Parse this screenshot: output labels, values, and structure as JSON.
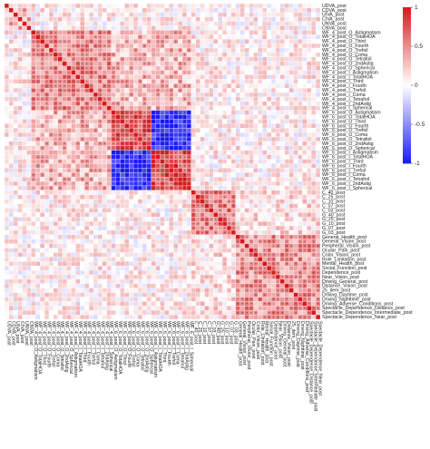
{
  "chart_data": {
    "type": "heatmap",
    "title": "",
    "variables": [
      "UDVA_post",
      "CDVA_post",
      "UIVA_post",
      "CIVA_post",
      "UNVA_post",
      "CNVA_post",
      "WF_4_post_O_Astigmatism",
      "WF_4_post_O_TotalHOA",
      "WF_4_post_O_Third",
      "WF_4_post_O_Fourth",
      "WF_4_post_O_Trefoil",
      "WF_4_post_O_Coma",
      "WF_4_post_O_Tetrafoil",
      "WF_4_post_O_2ndAstig",
      "WF_4_post_O_Spherical",
      "WF_4_post_I_Astigmatism",
      "WF_4_post_I_TotalHOA",
      "WF_4_post_I_Third",
      "WF_4_post_I_Fourth",
      "WF_4_post_I_Trefoil",
      "WF_4_post_I_Coma",
      "WF_4_post_I_Tetrafoil",
      "WF_4_post_I_2ndAstig",
      "WF_4_post_I_Spherical",
      "WF_6_post_O_Astigmatism",
      "WF_6_post_O_TotalHOA",
      "WF_6_post_O_Third",
      "WF_6_post_O_Fourth",
      "WF_6_post_O_Trefoil",
      "WF_6_post_O_Coma",
      "WF_6_post_O_Tetrafoil",
      "WF_6_post_O_2ndAstig",
      "WF_6_post_O_Spherical",
      "WF_6_post_I_Astigmatism",
      "WF_6_post_I_TotalHOA",
      "WF_6_post_I_Third",
      "WF_6_post_I_Fourth",
      "WF_6_post_I_Trefoil",
      "WF_6_post_I_Coma",
      "WF_6_post_I_Tetrafoil",
      "WF_6_post_I_2ndAstig",
      "WF_6_post_I_Spherical",
      "C_40_post",
      "C_25_post",
      "C_10_post",
      "C_07_post",
      "C_03_post",
      "G_40_post",
      "G_25_post",
      "G_10_post",
      "G_07_post",
      "G_03_post",
      "General_Health_post",
      "General_Vision_post",
      "Peripheral_Vision_post",
      "Ocular_Pain_post",
      "Color_Vision_post",
      "Role_Limitation_post",
      "Mental_Health_post",
      "Social_Function_post",
      "Dependence_post",
      "Near_Vision_post",
      "Driving_General_post",
      "Distance_Vision_post",
      "25_item_post",
      "Driving_Daytime_post",
      "Driving_Nighttime_post",
      "Driving_Adverse_Conditions_post",
      "Spectacle_Dependence_Distance_post",
      "Spectacle_Dependence_Intermediate_post",
      "Spectacle_Dependence_Near_post"
    ],
    "blocks": [
      {
        "name": "visual_acuity",
        "start": 0,
        "end": 5,
        "within": 0.35
      },
      {
        "name": "wf4_outer",
        "start": 6,
        "end": 14,
        "within": 0.55
      },
      {
        "name": "wf4_inner",
        "start": 15,
        "end": 23,
        "within": 0.6
      },
      {
        "name": "wf6_outer",
        "start": 24,
        "end": 32,
        "within": 0.7
      },
      {
        "name": "wf6_inner",
        "start": 33,
        "end": 41,
        "within": 0.75
      },
      {
        "name": "contrast_sensitivity",
        "start": 42,
        "end": 51,
        "within": 0.55
      },
      {
        "name": "vfq25",
        "start": 52,
        "end": 70,
        "within": 0.45
      }
    ],
    "cross_block_pattern": [
      {
        "rows": "wf4_outer,wf4_inner",
        "cols": "wf4_outer,wf4_inner",
        "corr": 0.5
      },
      {
        "rows": "wf6_outer",
        "cols": "wf6_inner",
        "corr": -0.9
      },
      {
        "rows": "wf6_inner",
        "cols": "wf6_outer",
        "corr": -0.9
      },
      {
        "rows": "wf4_outer,wf4_inner",
        "cols": "wf6_outer,wf6_inner",
        "corr": 0.3
      },
      {
        "rows": "contrast_sensitivity",
        "cols": "vfq25",
        "corr": 0.15
      }
    ],
    "colorbar": {
      "ticks": [
        "1",
        "0.5",
        "0",
        "-0.5",
        "-1"
      ],
      "tick_values": [
        1,
        0.5,
        0,
        -0.5,
        -1
      ],
      "range": [
        -1,
        1
      ],
      "colors": {
        "positive": "#d7191c",
        "zero": "#ffffff",
        "negative": "#1a1aff"
      }
    },
    "significance_marker": "*",
    "grid": true
  }
}
